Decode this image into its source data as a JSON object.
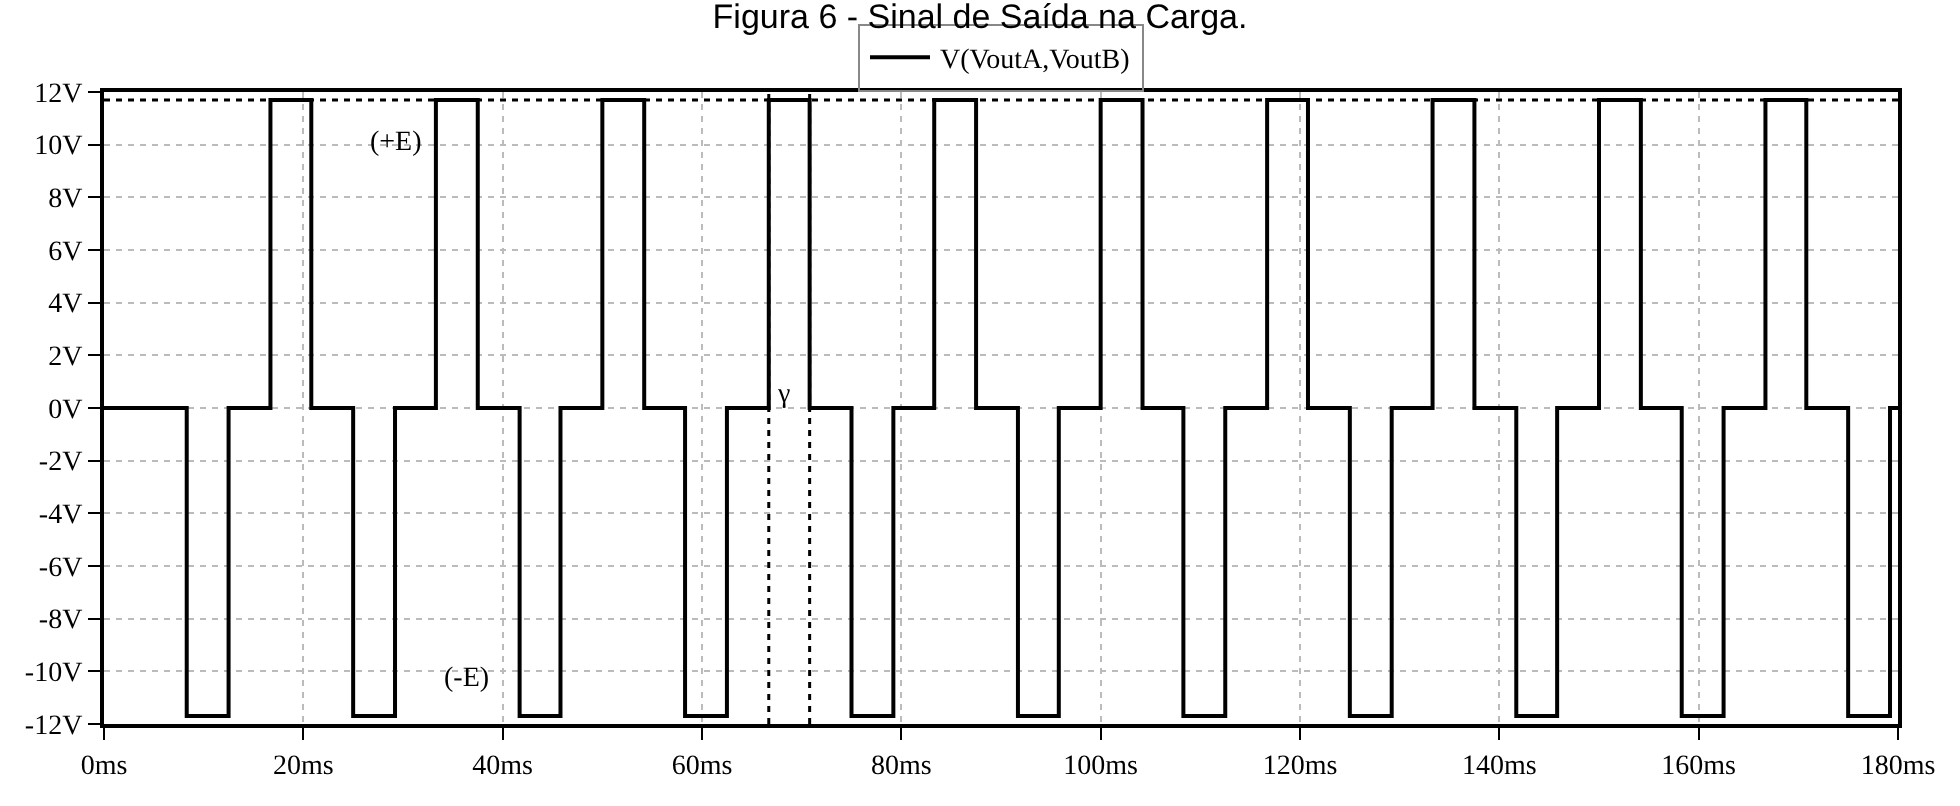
{
  "chart_data": {
    "type": "line",
    "title": "Figura 6 - Sinal de Saída na Carga.",
    "x": [
      0,
      8.3,
      8.3,
      12.5,
      12.5,
      16.7,
      16.7,
      20.8,
      20.8,
      25.0,
      25.0,
      29.2,
      29.2,
      33.3,
      33.3,
      37.5,
      37.5,
      41.7,
      41.7,
      45.8,
      45.8,
      50.0,
      50.0,
      54.2,
      54.2,
      58.3,
      58.3,
      62.5,
      62.5,
      66.7,
      66.7,
      70.8,
      70.8,
      75.0,
      75.0,
      79.2,
      79.2,
      83.3,
      83.3,
      87.5,
      87.5,
      91.7,
      91.7,
      95.8,
      95.8,
      100.0,
      100.0,
      104.2,
      104.2,
      108.3,
      108.3,
      112.5,
      112.5,
      116.7,
      116.7,
      120.8,
      120.8,
      125.0,
      125.0,
      129.2,
      129.2,
      133.3,
      133.3,
      137.5,
      137.5,
      141.7,
      141.7,
      145.8,
      145.8,
      150.0,
      150.0,
      154.2,
      154.2,
      158.3,
      158.3,
      162.5,
      162.5,
      166.7,
      166.7,
      170.8,
      170.8,
      175.0,
      175.0,
      179.2,
      179.2,
      180
    ],
    "series": [
      {
        "name": "V(VoutA,VoutB)",
        "color": "#000000",
        "values": [
          0,
          0,
          -11.7,
          -11.7,
          0,
          0,
          11.7,
          11.7,
          0,
          0,
          -11.7,
          -11.7,
          0,
          0,
          11.7,
          11.7,
          0,
          0,
          -11.7,
          -11.7,
          0,
          0,
          11.7,
          11.7,
          0,
          0,
          -11.7,
          -11.7,
          0,
          0,
          11.7,
          11.7,
          0,
          0,
          -11.7,
          -11.7,
          0,
          0,
          11.7,
          11.7,
          0,
          0,
          -11.7,
          -11.7,
          0,
          0,
          11.7,
          11.7,
          0,
          0,
          -11.7,
          -11.7,
          0,
          0,
          11.7,
          11.7,
          0,
          0,
          -11.7,
          -11.7,
          0,
          0,
          11.7,
          11.7,
          0,
          0,
          -11.7,
          -11.7,
          0,
          0,
          11.7,
          11.7,
          0,
          0,
          -11.7,
          -11.7,
          0,
          0,
          11.7,
          11.7,
          0,
          0,
          -11.7,
          -11.7,
          0,
          0
        ]
      }
    ],
    "xlim": [
      0,
      180
    ],
    "ylim": [
      -12,
      12
    ],
    "xticks": [
      {
        "value": 0,
        "label": "0ms"
      },
      {
        "value": 20,
        "label": "20ms"
      },
      {
        "value": 40,
        "label": "40ms"
      },
      {
        "value": 60,
        "label": "60ms"
      },
      {
        "value": 80,
        "label": "80ms"
      },
      {
        "value": 100,
        "label": "100ms"
      },
      {
        "value": 120,
        "label": "120ms"
      },
      {
        "value": 140,
        "label": "140ms"
      },
      {
        "value": 160,
        "label": "160ms"
      },
      {
        "value": 180,
        "label": "180ms"
      }
    ],
    "yticks": [
      {
        "value": -12,
        "label": "-12V"
      },
      {
        "value": -10,
        "label": "-10V"
      },
      {
        "value": -8,
        "label": "-8V"
      },
      {
        "value": -6,
        "label": "-6V"
      },
      {
        "value": -4,
        "label": "-4V"
      },
      {
        "value": -2,
        "label": "-2V"
      },
      {
        "value": 0,
        "label": "0V"
      },
      {
        "value": 2,
        "label": "2V"
      },
      {
        "value": 4,
        "label": "4V"
      },
      {
        "value": 6,
        "label": "6V"
      },
      {
        "value": 8,
        "label": "8V"
      },
      {
        "value": 10,
        "label": "10V"
      },
      {
        "value": 12,
        "label": "12V"
      }
    ],
    "ref_lines": [
      {
        "axis": "y",
        "value": 11.7,
        "color": "#000000",
        "line_style": "dotted"
      },
      {
        "axis": "x",
        "value": 66.7,
        "color": "#000000",
        "line_style": "dotted"
      },
      {
        "axis": "x",
        "value": 70.8,
        "color": "#000000",
        "line_style": "dotted"
      }
    ],
    "annotations": [
      "(+E)",
      "(-E)",
      "γ"
    ],
    "grid": true,
    "legend": "top",
    "marker": "none",
    "line_style": "solid"
  }
}
